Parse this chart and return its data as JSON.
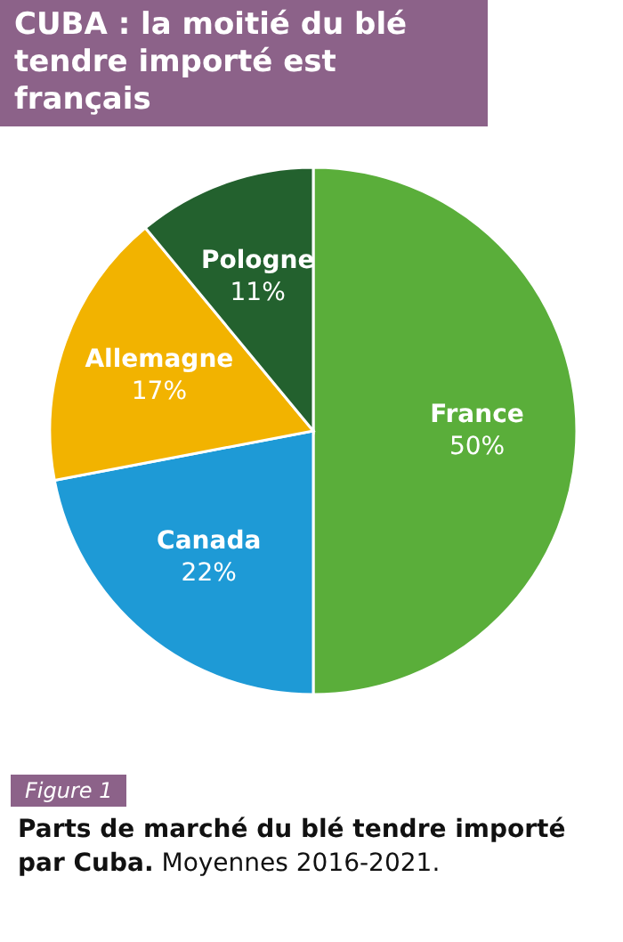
{
  "chart_data": {
    "type": "pie",
    "title": "CUBA : la moitié du blé tendre importé est français",
    "categories": [
      "France",
      "Canada",
      "Allemagne",
      "Pologne"
    ],
    "values": [
      50,
      22,
      17,
      11
    ],
    "value_labels": [
      "50%",
      "22%",
      "17%",
      "11%"
    ],
    "colors": [
      "#5aae3a",
      "#1e9ad6",
      "#f2b300",
      "#23612e"
    ],
    "annotations": [
      "Figure 1",
      "Parts de marché du blé tendre importé par Cuba.",
      "Moyennes 2016-2021."
    ]
  }
}
